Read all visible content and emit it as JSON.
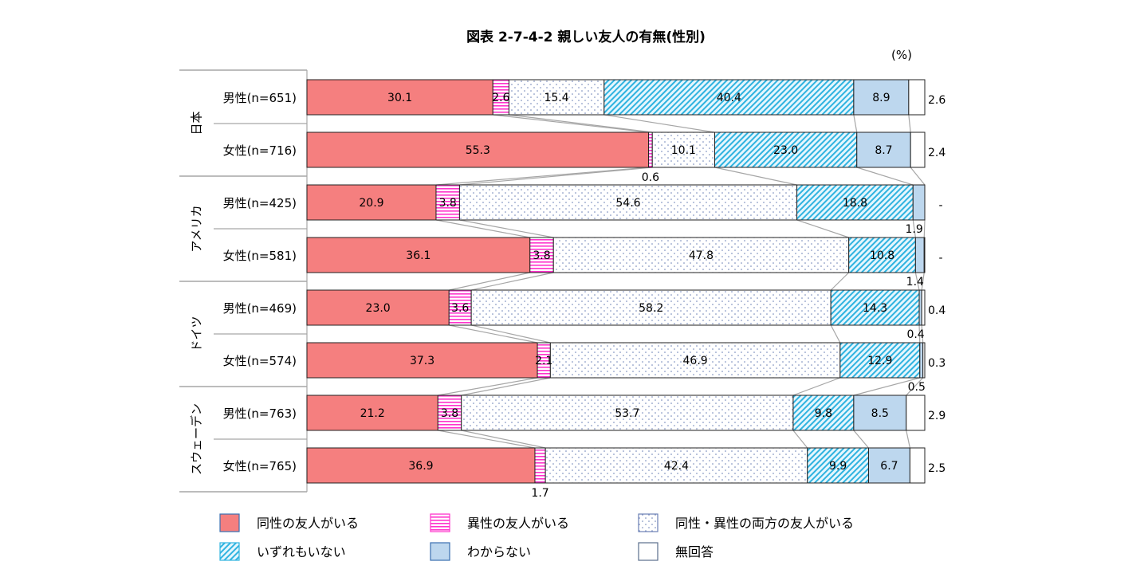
{
  "chart_data": {
    "type": "bar",
    "stacked": true,
    "orientation": "horizontal",
    "title": "図表 2-7-4-2 親しい友人の有無(性別)",
    "unit": "(%)",
    "groups": [
      {
        "name": "日本",
        "rows": [
          0,
          1
        ]
      },
      {
        "name": "アメリカ",
        "rows": [
          2,
          3
        ]
      },
      {
        "name": "ドイツ",
        "rows": [
          4,
          5
        ]
      },
      {
        "name": "スウェーデン",
        "rows": [
          6,
          7
        ]
      }
    ],
    "categories": [
      "男性(n=651)",
      "女性(n=716)",
      "男性(n=425)",
      "女性(n=581)",
      "男性(n=469)",
      "女性(n=574)",
      "男性(n=763)",
      "女性(n=765)"
    ],
    "series": [
      {
        "name": "同性の友人がいる",
        "color": "#f57f7f",
        "pattern": "solid",
        "values": [
          30.1,
          55.3,
          20.9,
          36.1,
          23.0,
          37.3,
          21.2,
          36.9
        ],
        "labels": [
          "30.1",
          "55.3",
          "20.9",
          "36.1",
          "23.0",
          "37.3",
          "21.2",
          "36.9"
        ]
      },
      {
        "name": "異性の友人がいる",
        "color": "#ff33cc",
        "pattern": "horizontal-stripes",
        "values": [
          2.6,
          0.6,
          3.8,
          3.8,
          3.6,
          2.1,
          3.8,
          1.7
        ],
        "labels": [
          "2.6",
          "0.6",
          "3.8",
          "3.8",
          "3.6",
          "2.1",
          "3.8",
          "1.7"
        ]
      },
      {
        "name": "同性・異性の両方の友人がいる",
        "color": "#6a7fb5",
        "pattern": "dots",
        "values": [
          15.4,
          10.1,
          54.6,
          47.8,
          58.2,
          46.9,
          53.7,
          42.4
        ],
        "labels": [
          "15.4",
          "10.1",
          "54.6",
          "47.8",
          "58.2",
          "46.9",
          "53.7",
          "42.4"
        ]
      },
      {
        "name": "いずれもいない",
        "color": "#2fb3e0",
        "pattern": "diagonal",
        "values": [
          40.4,
          23.0,
          18.8,
          10.8,
          14.3,
          12.9,
          9.8,
          9.9
        ],
        "labels": [
          "40.4",
          "23.0",
          "18.8",
          "10.8",
          "14.3",
          "12.9",
          "9.8",
          "9.9"
        ]
      },
      {
        "name": "わからない",
        "color": "#bdd7ee",
        "pattern": "solid",
        "values": [
          8.9,
          8.7,
          1.9,
          1.4,
          0.4,
          0.5,
          8.5,
          6.7
        ],
        "labels": [
          "8.9",
          "8.7",
          "1.9",
          "1.4",
          "0.4",
          "0.5",
          "8.5",
          "6.7"
        ]
      },
      {
        "name": "無回答",
        "color": "#ffffff",
        "pattern": "solid",
        "values": [
          2.6,
          2.4,
          0,
          0,
          0.4,
          0.3,
          2.9,
          2.5
        ],
        "labels": [
          "2.6",
          "2.4",
          "-",
          "-",
          "0.4",
          "0.3",
          "2.9",
          "2.5"
        ]
      }
    ],
    "xlim": [
      0,
      100
    ],
    "grid": false,
    "legend_position": "bottom"
  }
}
